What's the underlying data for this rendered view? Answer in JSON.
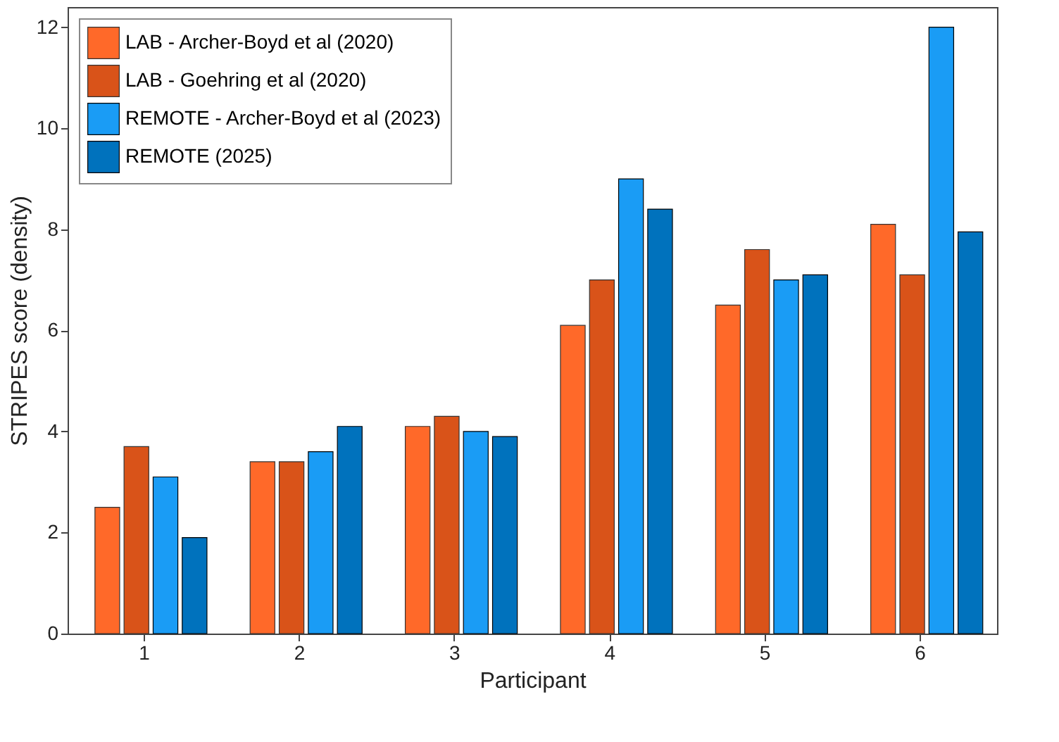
{
  "chart_data": {
    "type": "bar",
    "xlabel": "Participant",
    "ylabel": "STRIPES score (density)",
    "categories": [
      "1",
      "2",
      "3",
      "4",
      "5",
      "6"
    ],
    "series": [
      {
        "name": "LAB - Archer-Boyd et al (2020)",
        "color": "#ff6929",
        "values": [
          2.5,
          3.4,
          4.1,
          6.1,
          6.5,
          8.1
        ]
      },
      {
        "name": "LAB - Goehring et al (2020)",
        "color": "#d95319",
        "values": [
          3.7,
          3.4,
          4.3,
          7.0,
          7.6,
          7.1
        ]
      },
      {
        "name": "REMOTE - Archer-Boyd et al (2023)",
        "color": "#1a9cf5",
        "values": [
          3.1,
          3.6,
          4.0,
          9.0,
          7.0,
          12.0
        ]
      },
      {
        "name": "REMOTE (2025)",
        "color": "#0072bd",
        "values": [
          1.9,
          4.1,
          3.9,
          8.4,
          7.1,
          7.95
        ]
      }
    ],
    "ylim": [
      0,
      12.4
    ],
    "yticks": [
      0,
      2,
      4,
      6,
      8,
      10,
      12
    ],
    "grid": false,
    "legend": "top left"
  }
}
